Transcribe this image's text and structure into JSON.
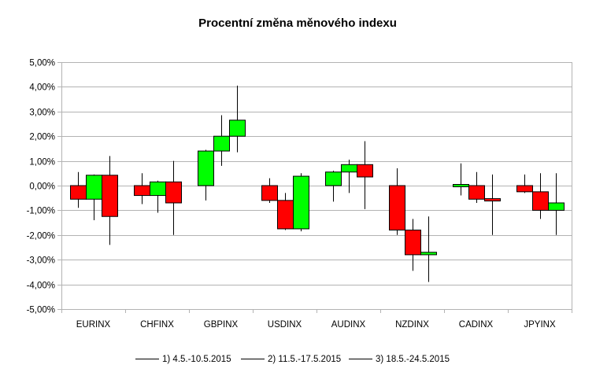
{
  "chart_data": {
    "type": "candlestick",
    "title": "Procentní změna měnového indexu",
    "ylim": [
      -5,
      5
    ],
    "yticks": [
      5,
      4,
      3,
      2,
      1,
      0,
      -1,
      -2,
      -3,
      -4,
      -5
    ],
    "ytick_labels": [
      "5,00%",
      "4,00%",
      "3,00%",
      "2,00%",
      "1,00%",
      "0,00%",
      "-1,00%",
      "-2,00%",
      "-3,00%",
      "-4,00%",
      "-5,00%"
    ],
    "grid": true,
    "legend_position": "bottom",
    "colors": {
      "up": "#00ff00",
      "down": "#ff0000",
      "grid": "#b3b3b3"
    },
    "categories": [
      "EURINX",
      "CHFINX",
      "GBPINX",
      "USDINX",
      "AUDINX",
      "NZDINX",
      "CADINX",
      "JPYINX"
    ],
    "series": [
      {
        "name": "1) 4.5.-10.5.2015",
        "ohlc": [
          {
            "open": 0.0,
            "high": 0.55,
            "low": -0.9,
            "close": -0.55
          },
          {
            "open": 0.0,
            "high": 0.5,
            "low": -0.75,
            "close": -0.4
          },
          {
            "open": 0.0,
            "high": 1.45,
            "low": -0.6,
            "close": 1.4
          },
          {
            "open": 0.0,
            "high": 0.3,
            "low": -0.7,
            "close": -0.6
          },
          {
            "open": 0.0,
            "high": 0.6,
            "low": -0.65,
            "close": 0.55
          },
          {
            "open": 0.0,
            "high": 0.7,
            "low": -2.0,
            "close": -1.8
          },
          {
            "open": 0.0,
            "high": 0.9,
            "low": -0.4,
            "close": 0.0
          },
          {
            "open": 0.0,
            "high": 0.45,
            "low": -0.3,
            "close": -0.25
          }
        ]
      },
      {
        "name": "2) 11.5.-17.5.2015",
        "ohlc": [
          {
            "open": -0.55,
            "high": 0.45,
            "low": -1.4,
            "close": 0.42
          },
          {
            "open": -0.4,
            "high": 0.2,
            "low": -1.1,
            "close": 0.15
          },
          {
            "open": 1.4,
            "high": 2.85,
            "low": 0.8,
            "close": 2.0
          },
          {
            "open": -0.6,
            "high": -0.3,
            "low": -1.8,
            "close": -1.75
          },
          {
            "open": 0.55,
            "high": 1.05,
            "low": -0.3,
            "close": 0.85
          },
          {
            "open": -1.8,
            "high": -1.35,
            "low": -3.45,
            "close": -2.8
          },
          {
            "open": 0.0,
            "high": 0.55,
            "low": -0.7,
            "close": -0.55
          },
          {
            "open": -0.25,
            "high": 0.5,
            "low": -1.35,
            "close": -1.0
          }
        ]
      },
      {
        "name": "3) 18.5.-24.5.2015",
        "ohlc": [
          {
            "open": 0.42,
            "high": 1.2,
            "low": -2.4,
            "close": -1.25
          },
          {
            "open": 0.15,
            "high": 1.0,
            "low": -2.0,
            "close": -0.7
          },
          {
            "open": 2.0,
            "high": 4.05,
            "low": 1.35,
            "close": 2.65
          },
          {
            "open": -1.75,
            "high": 0.5,
            "low": -1.85,
            "close": 0.38
          },
          {
            "open": 0.85,
            "high": 1.8,
            "low": -0.95,
            "close": 0.35
          },
          {
            "open": -2.8,
            "high": -1.25,
            "low": -3.9,
            "close": -2.7
          },
          {
            "open": -0.55,
            "high": 0.45,
            "low": -2.0,
            "close": -0.6
          },
          {
            "open": -1.0,
            "high": 0.5,
            "low": -2.0,
            "close": -0.7
          }
        ]
      }
    ]
  }
}
